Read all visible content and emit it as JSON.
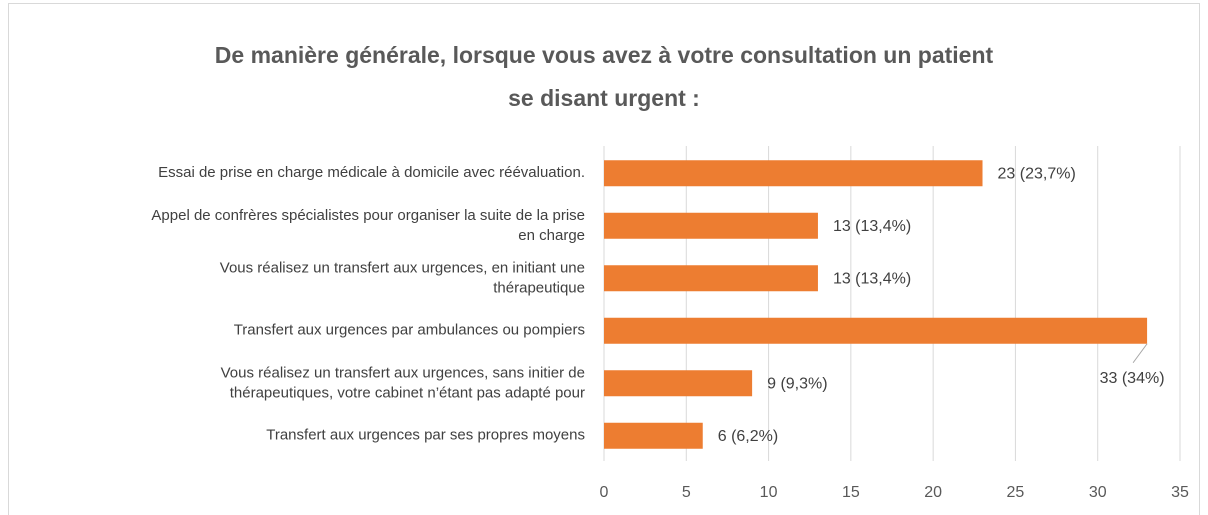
{
  "chart_data": {
    "type": "bar",
    "orientation": "horizontal",
    "title": "De manière générale, lorsque vous avez à votre consultation un patient\nse disant urgent :",
    "categories": [
      "Essai de prise en charge médicale à domicile avec réévaluation.",
      "Appel de confrères spécialistes pour organiser la suite de la prise\nen charge",
      "Vous réalisez un transfert aux urgences, en initiant une\nthérapeutique",
      "Transfert aux urgences par ambulances ou pompiers",
      "Vous réalisez un transfert aux urgences, sans initier de\nthérapeutiques, votre cabinet n’étant pas adapté pour",
      "Transfert aux urgences par ses propres moyens"
    ],
    "values": [
      23,
      13,
      13,
      33,
      9,
      6
    ],
    "value_labels": [
      "23 (23,7%)",
      "13 (13,4%)",
      "13 (13,4%)",
      "33 (34%)",
      "9 (9,3%)",
      "6 (6,2%)"
    ],
    "color": "#ed7d31",
    "xlim": [
      0,
      35
    ],
    "xticks": [
      0,
      5,
      10,
      15,
      20,
      25,
      30,
      35
    ],
    "grid": true
  }
}
